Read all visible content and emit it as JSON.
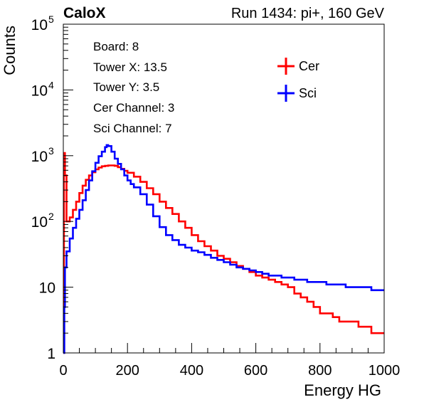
{
  "chart_data": {
    "type": "line",
    "title_left": "CaloX",
    "title_right": "Run 1434: pi+, 160 GeV",
    "xlabel": "Energy HG",
    "ylabel": "Counts",
    "xlim": [
      0,
      1000
    ],
    "ylim": [
      1,
      100000
    ],
    "yscale": "log",
    "xticks": [
      {
        "value": 0,
        "label": "0"
      },
      {
        "value": 200,
        "label": "200"
      },
      {
        "value": 400,
        "label": "400"
      },
      {
        "value": 600,
        "label": "600"
      },
      {
        "value": 800,
        "label": "800"
      },
      {
        "value": 1000,
        "label": "1000"
      }
    ],
    "yticks": [
      {
        "value": 1,
        "base": "1",
        "exp": ""
      },
      {
        "value": 10,
        "base": "10",
        "exp": ""
      },
      {
        "value": 100,
        "base": "10",
        "exp": "2"
      },
      {
        "value": 1000,
        "base": "10",
        "exp": "3"
      },
      {
        "value": 10000,
        "base": "10",
        "exp": "4"
      },
      {
        "value": 100000,
        "base": "10",
        "exp": "5"
      }
    ],
    "info_lines": [
      "Board: 8",
      "Tower X: 13.5",
      "Tower Y: 3.5",
      "Cer Channel: 3",
      "Sci Channel: 7"
    ],
    "legend_position": "top-right",
    "series": [
      {
        "name": "Cer",
        "color": "#ff0000",
        "x": [
          0,
          2,
          5,
          10,
          20,
          30,
          40,
          50,
          60,
          70,
          80,
          90,
          100,
          110,
          120,
          130,
          140,
          150,
          160,
          170,
          180,
          190,
          200,
          220,
          240,
          260,
          280,
          300,
          320,
          340,
          360,
          380,
          400,
          420,
          440,
          460,
          480,
          500,
          520,
          540,
          560,
          580,
          600,
          620,
          640,
          660,
          680,
          700,
          720,
          740,
          760,
          780,
          800,
          820,
          840,
          860,
          880,
          900,
          920,
          940,
          960,
          980,
          998
        ],
        "y": [
          1,
          1100,
          500,
          100,
          115,
          150,
          200,
          270,
          350,
          430,
          500,
          560,
          620,
          660,
          690,
          700,
          710,
          710,
          700,
          670,
          630,
          590,
          550,
          480,
          400,
          320,
          260,
          200,
          160,
          130,
          100,
          80,
          62,
          50,
          42,
          36,
          30,
          27,
          24,
          21,
          19,
          17,
          15,
          14,
          13,
          12,
          11,
          10,
          8,
          7,
          6,
          5,
          4,
          4,
          3.5,
          3,
          3,
          3,
          2.5,
          2.5,
          2,
          2,
          2
        ]
      },
      {
        "name": "Sci",
        "color": "#0000ff",
        "x": [
          0,
          3,
          5,
          10,
          20,
          30,
          40,
          50,
          60,
          70,
          80,
          90,
          100,
          110,
          120,
          130,
          135,
          140,
          150,
          160,
          170,
          180,
          190,
          200,
          210,
          220,
          240,
          260,
          280,
          300,
          320,
          340,
          360,
          380,
          400,
          420,
          440,
          460,
          480,
          500,
          520,
          540,
          560,
          580,
          600,
          620,
          640,
          660,
          680,
          700,
          720,
          740,
          760,
          780,
          800,
          820,
          840,
          860,
          880,
          900,
          920,
          940,
          960,
          980,
          998
        ],
        "y": [
          1,
          5,
          20,
          35,
          55,
          80,
          110,
          150,
          210,
          300,
          420,
          580,
          780,
          980,
          1150,
          1350,
          1450,
          1400,
          1150,
          900,
          750,
          620,
          500,
          420,
          370,
          330,
          260,
          180,
          120,
          82,
          62,
          52,
          44,
          40,
          36,
          34,
          31,
          28,
          26,
          24,
          22,
          20,
          19,
          18,
          17,
          16,
          15,
          15,
          14,
          14,
          13,
          13,
          12,
          12,
          12,
          11,
          11,
          11,
          10,
          10,
          10,
          10,
          9,
          9,
          9
        ]
      }
    ]
  }
}
